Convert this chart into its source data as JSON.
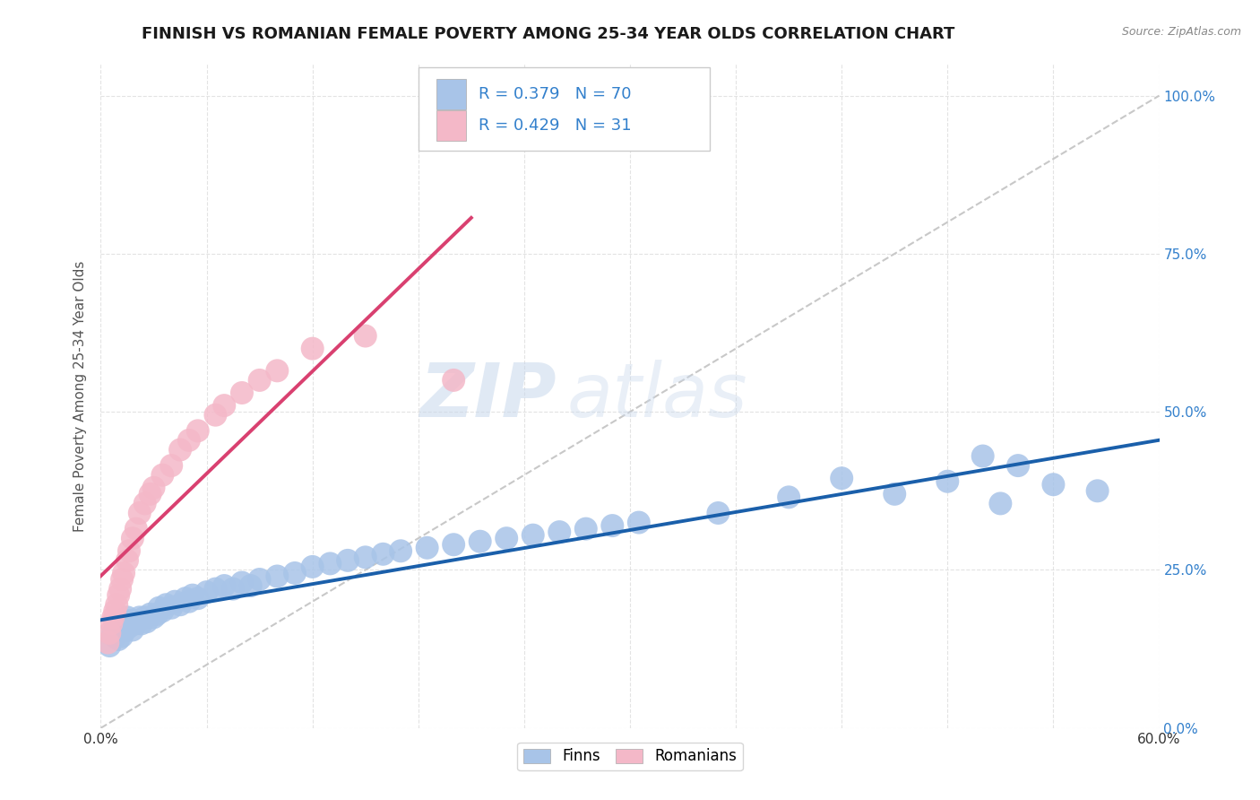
{
  "title": "FINNISH VS ROMANIAN FEMALE POVERTY AMONG 25-34 YEAR OLDS CORRELATION CHART",
  "source": "Source: ZipAtlas.com",
  "ylabel": "Female Poverty Among 25-34 Year Olds",
  "xlim": [
    0.0,
    0.6
  ],
  "ylim": [
    0.0,
    1.05
  ],
  "xtick_positions": [
    0.0,
    0.06,
    0.12,
    0.18,
    0.24,
    0.3,
    0.36,
    0.42,
    0.48,
    0.54,
    0.6
  ],
  "ytick_positions": [
    0.0,
    0.25,
    0.5,
    0.75,
    1.0
  ],
  "ytick_right_labels": [
    "0.0%",
    "25.0%",
    "50.0%",
    "75.0%",
    "100.0%"
  ],
  "finns_color": "#a8c4e8",
  "romanians_color": "#f4b8c8",
  "finns_line_color": "#1a5faa",
  "romanians_line_color": "#d94070",
  "diagonal_color": "#c8c8c8",
  "grid_color": "#e0e0e0",
  "background_color": "#ffffff",
  "legend_text_color": "#3380cc",
  "finns_R": "0.379",
  "finns_N": "70",
  "romanians_R": "0.429",
  "romanians_N": "31",
  "watermark": "ZIPatlas",
  "title_fontsize": 13,
  "label_fontsize": 11,
  "tick_fontsize": 11,
  "legend_fontsize": 13,
  "finns_x": [
    0.005,
    0.007,
    0.008,
    0.009,
    0.01,
    0.01,
    0.011,
    0.012,
    0.013,
    0.013,
    0.014,
    0.015,
    0.015,
    0.016,
    0.017,
    0.018,
    0.019,
    0.02,
    0.021,
    0.022,
    0.023,
    0.025,
    0.026,
    0.028,
    0.03,
    0.032,
    0.033,
    0.035,
    0.037,
    0.04,
    0.042,
    0.045,
    0.048,
    0.05,
    0.052,
    0.055,
    0.06,
    0.065,
    0.07,
    0.075,
    0.08,
    0.085,
    0.09,
    0.1,
    0.11,
    0.12,
    0.13,
    0.14,
    0.15,
    0.16,
    0.17,
    0.185,
    0.2,
    0.215,
    0.23,
    0.245,
    0.26,
    0.275,
    0.29,
    0.305,
    0.35,
    0.39,
    0.42,
    0.45,
    0.48,
    0.5,
    0.51,
    0.52,
    0.54,
    0.565
  ],
  "finns_y": [
    0.13,
    0.15,
    0.145,
    0.155,
    0.14,
    0.165,
    0.158,
    0.145,
    0.16,
    0.17,
    0.155,
    0.165,
    0.175,
    0.16,
    0.17,
    0.155,
    0.168,
    0.165,
    0.17,
    0.175,
    0.165,
    0.175,
    0.168,
    0.18,
    0.175,
    0.18,
    0.19,
    0.185,
    0.195,
    0.19,
    0.2,
    0.195,
    0.205,
    0.2,
    0.21,
    0.205,
    0.215,
    0.22,
    0.225,
    0.22,
    0.23,
    0.225,
    0.235,
    0.24,
    0.245,
    0.255,
    0.26,
    0.265,
    0.27,
    0.275,
    0.28,
    0.285,
    0.29,
    0.295,
    0.3,
    0.305,
    0.31,
    0.315,
    0.32,
    0.325,
    0.34,
    0.365,
    0.395,
    0.37,
    0.39,
    0.43,
    0.355,
    0.415,
    0.385,
    0.375
  ],
  "romanians_x": [
    0.004,
    0.005,
    0.006,
    0.007,
    0.008,
    0.009,
    0.01,
    0.011,
    0.012,
    0.013,
    0.015,
    0.016,
    0.018,
    0.02,
    0.022,
    0.025,
    0.028,
    0.03,
    0.035,
    0.04,
    0.045,
    0.05,
    0.055,
    0.065,
    0.07,
    0.08,
    0.09,
    0.1,
    0.12,
    0.15,
    0.2
  ],
  "romanians_y": [
    0.135,
    0.15,
    0.165,
    0.175,
    0.185,
    0.195,
    0.21,
    0.22,
    0.235,
    0.245,
    0.265,
    0.28,
    0.3,
    0.315,
    0.34,
    0.355,
    0.37,
    0.38,
    0.4,
    0.415,
    0.44,
    0.455,
    0.47,
    0.495,
    0.51,
    0.53,
    0.55,
    0.565,
    0.6,
    0.62,
    0.55
  ]
}
